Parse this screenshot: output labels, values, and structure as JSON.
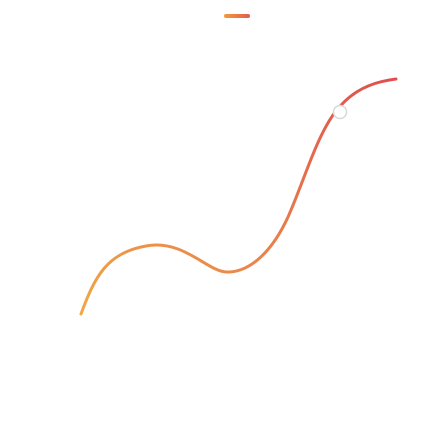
{
  "legend": {
    "swatch_color_start": "#f29a3b",
    "swatch_color_end": "#e45a4f"
  },
  "curve": {
    "stroke_color_start": "#f0a847",
    "stroke_color_end": "#df4f4f"
  },
  "handle": {
    "fill": "#ffffff",
    "stroke": "#d8d8d8"
  }
}
